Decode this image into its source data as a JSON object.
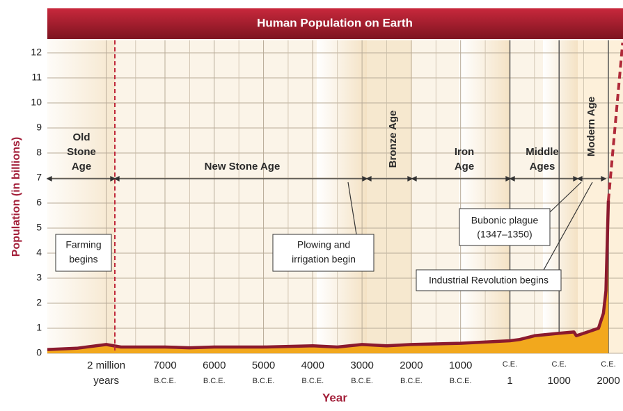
{
  "chart_data": {
    "type": "area",
    "title": "Human Population on Earth",
    "y_label": "Population (in billions)",
    "x_label": "Year",
    "ylim": [
      0,
      12.5
    ],
    "yticks": [
      0,
      1,
      2,
      3,
      4,
      5,
      6,
      7,
      8,
      9,
      10,
      11,
      12
    ],
    "xlim": [
      -4000000,
      2300
    ],
    "xbreak": -7000,
    "xticks": [
      {
        "value": -2000000,
        "label": [
          "2 million",
          "years"
        ]
      },
      {
        "value": -7000,
        "label": [
          "7000",
          "B.C.E."
        ]
      },
      {
        "value": -6000,
        "label": [
          "6000",
          "B.C.E."
        ]
      },
      {
        "value": -5000,
        "label": [
          "5000",
          "B.C.E."
        ]
      },
      {
        "value": -4000,
        "label": [
          "4000",
          "B.C.E."
        ]
      },
      {
        "value": -3000,
        "label": [
          "3000",
          "B.C.E."
        ]
      },
      {
        "value": -2000,
        "label": [
          "2000",
          "B.C.E."
        ]
      },
      {
        "value": -1000,
        "label": [
          "1000",
          "B.C.E."
        ]
      },
      {
        "value": 1,
        "label": [
          "C.E.",
          "1"
        ]
      },
      {
        "value": 1000,
        "label": [
          "C.E.",
          "1000"
        ]
      },
      {
        "value": 2000,
        "label": [
          "C.E.",
          "2000"
        ]
      }
    ],
    "grid": true,
    "series": [
      {
        "color": "#8b1a2e",
        "fill": "#f2a81d",
        "x": [
          -4000000,
          -3000000,
          -2000000,
          -1500000,
          -1000000,
          -7000,
          -6500,
          -6000,
          -5000,
          -4000,
          -3500,
          -3000,
          -2500,
          -2000,
          -1000,
          1,
          200,
          500,
          1000,
          1300,
          1350,
          1500,
          1800,
          1900,
          1950,
          2000
        ],
        "values": [
          0.15,
          0.2,
          0.35,
          0.25,
          0.25,
          0.25,
          0.22,
          0.25,
          0.25,
          0.3,
          0.25,
          0.35,
          0.3,
          0.35,
          0.4,
          0.5,
          0.55,
          0.7,
          0.8,
          0.85,
          0.7,
          0.8,
          1.0,
          1.6,
          2.5,
          6.1
        ]
      },
      {
        "color": "#b02a3a",
        "dashed": true,
        "x": [
          2000,
          2290
        ],
        "values": [
          6.1,
          12.4
        ]
      }
    ],
    "eras": [
      {
        "name": [
          "Old",
          "Stone",
          "Age"
        ]
      },
      {
        "name": [
          "New Stone Age"
        ]
      },
      {
        "name": [
          "Bronze Age"
        ]
      },
      {
        "name": [
          "Iron",
          "Age"
        ]
      },
      {
        "name": [
          "Middle",
          "Ages"
        ]
      },
      {
        "name": [
          "Modern Age"
        ]
      }
    ],
    "annotations": [
      {
        "text": [
          "Farming",
          "begins"
        ]
      },
      {
        "text": [
          "Plowing and",
          "irrigation begin"
        ]
      },
      {
        "text": [
          "Bubonic plague",
          "(1347–1350)"
        ]
      },
      {
        "text": [
          "Industrial Revolution begins"
        ]
      }
    ]
  }
}
